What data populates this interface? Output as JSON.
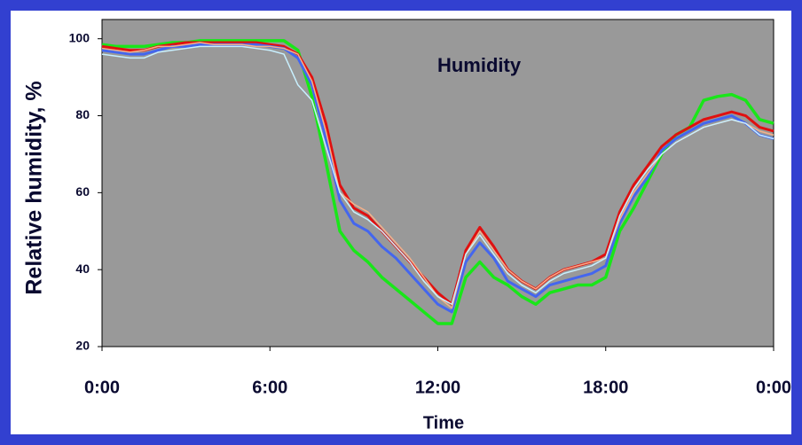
{
  "chart_data": {
    "type": "line",
    "title": "Humidity",
    "xlabel": "Time",
    "ylabel": "Relative humidity, %",
    "x": [
      0,
      0.5,
      1,
      1.5,
      2,
      2.5,
      3,
      3.5,
      4,
      4.5,
      5,
      5.5,
      6,
      6.5,
      7,
      7.5,
      8,
      8.5,
      9,
      9.5,
      10,
      10.5,
      11,
      11.5,
      12,
      12.5,
      13,
      13.5,
      14,
      14.5,
      15,
      15.5,
      16,
      16.5,
      17,
      17.5,
      18,
      18.5,
      19,
      19.5,
      20,
      20.5,
      21,
      21.5,
      22,
      22.5,
      23,
      23.5,
      24
    ],
    "xlim": [
      0,
      24
    ],
    "xticks": [
      {
        "value": 0,
        "label": "0:00"
      },
      {
        "value": 6,
        "label": "6:00"
      },
      {
        "value": 12,
        "label": "12:00"
      },
      {
        "value": 18,
        "label": "18:00"
      },
      {
        "value": 24,
        "label": "0:00"
      }
    ],
    "ylim": [
      20,
      105
    ],
    "yticks": [
      20,
      40,
      60,
      80,
      100
    ],
    "grid": false,
    "series": [
      {
        "color": "#19e619",
        "values": [
          98.5,
          98,
          98,
          98,
          98.5,
          99,
          99,
          99.5,
          99.5,
          99.5,
          99.5,
          99.5,
          99.5,
          99.5,
          97,
          85,
          68,
          50,
          45,
          42,
          38,
          35,
          32,
          29,
          26,
          26,
          38,
          42,
          38,
          36,
          33,
          31,
          34,
          35,
          36,
          36,
          38,
          50,
          56,
          63,
          70,
          75,
          77,
          84,
          85,
          85.5,
          84,
          79,
          78
        ]
      },
      {
        "color": "#e01010",
        "values": [
          98,
          97.5,
          97,
          97,
          98,
          98.5,
          99,
          99,
          99,
          99,
          99,
          99,
          98.5,
          98,
          96,
          90,
          78,
          62,
          56,
          54,
          50,
          46,
          42,
          38,
          34,
          31,
          45,
          51,
          46,
          40,
          37,
          35,
          38,
          40,
          41,
          42,
          44,
          55,
          62,
          67,
          72,
          75,
          77,
          79,
          80,
          81,
          80,
          77,
          76
        ]
      },
      {
        "color": "#4466ee",
        "values": [
          97,
          96.5,
          96,
          96,
          97,
          98,
          98,
          98.5,
          98.5,
          98.5,
          98.5,
          98.5,
          98,
          97.5,
          95,
          88,
          74,
          58,
          52,
          50,
          46,
          43,
          39,
          35,
          31,
          29,
          42,
          47,
          43,
          37,
          35,
          33,
          36,
          37,
          38,
          39,
          41,
          52,
          59,
          64,
          71,
          74,
          76,
          78,
          79,
          80,
          78,
          75,
          74
        ]
      },
      {
        "color": "#f5b08a",
        "values": [
          97.5,
          97,
          96.5,
          97,
          98,
          98,
          98.5,
          99,
          98.5,
          98.5,
          98.5,
          98,
          98,
          97.5,
          96,
          89,
          76,
          60,
          57,
          55,
          51,
          47,
          43,
          38,
          33,
          30,
          44,
          50,
          45,
          40,
          37,
          35,
          38,
          40,
          41,
          42,
          43,
          53,
          60,
          65,
          70,
          73,
          75,
          77,
          78,
          79,
          78,
          76,
          75
        ]
      },
      {
        "color": "#c8f0ff",
        "values": [
          96,
          95.5,
          95,
          95,
          96.5,
          97,
          97.5,
          98,
          98,
          98,
          98,
          97.5,
          97,
          96,
          88,
          84,
          72,
          60,
          55,
          53,
          50,
          46,
          42,
          37,
          33,
          31,
          44,
          49,
          44,
          39,
          36,
          34,
          37,
          39,
          40,
          41,
          43,
          54,
          61,
          66,
          70,
          73,
          75,
          77,
          78,
          79,
          78,
          75,
          74
        ]
      }
    ]
  }
}
